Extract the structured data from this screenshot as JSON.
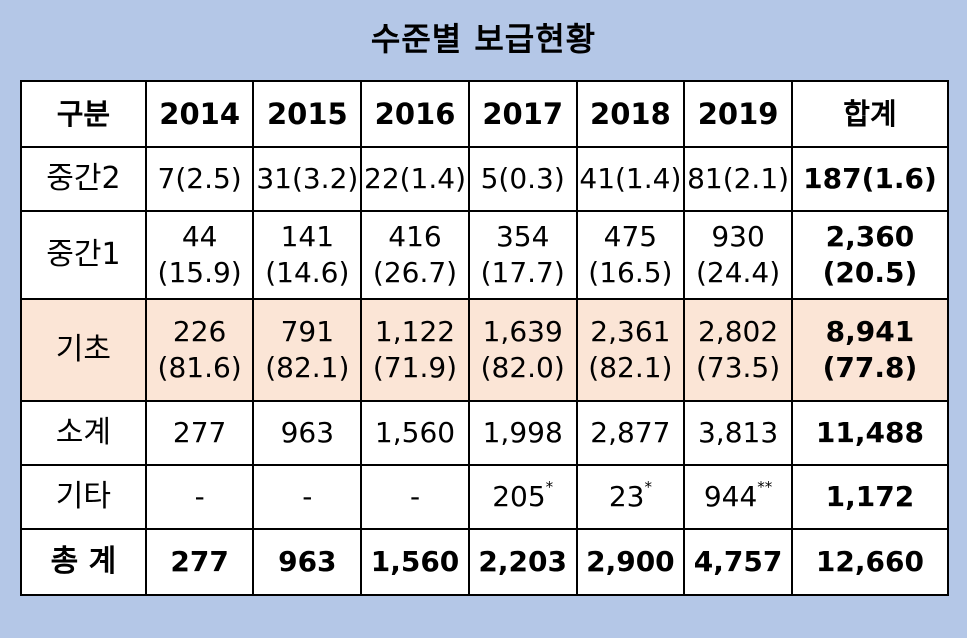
{
  "title": "수준별 보급현황",
  "headers": [
    "구분",
    "2014",
    "2015",
    "2016",
    "2017",
    "2018",
    "2019",
    "합계"
  ],
  "rows": [
    {
      "label": "중간2",
      "cells": [
        {
          "a": "7(2.5)"
        },
        {
          "a": "31(3.2)"
        },
        {
          "a": "22(1.4)"
        },
        {
          "a": "5(0.3)"
        },
        {
          "a": "41(1.4)"
        },
        {
          "a": "81(2.1)"
        }
      ],
      "total": {
        "a": "187(1.6)"
      }
    },
    {
      "label": "중간1",
      "cells": [
        {
          "a": "44",
          "b": "(15.9)"
        },
        {
          "a": "141",
          "b": "(14.6)"
        },
        {
          "a": "416",
          "b": "(26.7)"
        },
        {
          "a": "354",
          "b": "(17.7)"
        },
        {
          "a": "475",
          "b": "(16.5)"
        },
        {
          "a": "930",
          "b": "(24.4)"
        }
      ],
      "total": {
        "a": "2,360",
        "b": "(20.5)"
      }
    },
    {
      "label": "기초",
      "cells": [
        {
          "a": "226",
          "b": "(81.6)"
        },
        {
          "a": "791",
          "b": "(82.1)"
        },
        {
          "a": "1,122",
          "b": "(71.9)"
        },
        {
          "a": "1,639",
          "b": "(82.0)"
        },
        {
          "a": "2,361",
          "b": "(82.1)"
        },
        {
          "a": "2,802",
          "b": "(73.5)"
        }
      ],
      "total": {
        "a": "8,941",
        "b": "(77.8)"
      }
    },
    {
      "label": "소계",
      "cells": [
        {
          "a": "277"
        },
        {
          "a": "963"
        },
        {
          "a": "1,560"
        },
        {
          "a": "1,998"
        },
        {
          "a": "2,877"
        },
        {
          "a": "3,813"
        }
      ],
      "total": {
        "a": "11,488"
      }
    },
    {
      "label": "기타",
      "cells": [
        {
          "a": "-"
        },
        {
          "a": "-"
        },
        {
          "a": "-"
        },
        {
          "a": "205",
          "mark": "*"
        },
        {
          "a": "23",
          "mark": "*"
        },
        {
          "a": "944",
          "mark": "**"
        }
      ],
      "total": {
        "a": "1,172"
      }
    },
    {
      "label": "총 계",
      "cells": [
        {
          "a": "277"
        },
        {
          "a": "963"
        },
        {
          "a": "1,560"
        },
        {
          "a": "2,203"
        },
        {
          "a": "2,900"
        },
        {
          "a": "4,757"
        }
      ],
      "total": {
        "a": "12,660"
      }
    }
  ],
  "colors": {
    "background": "#b4c7e7",
    "table": "#ffffff",
    "highlight_row": "#fbe5d6"
  }
}
